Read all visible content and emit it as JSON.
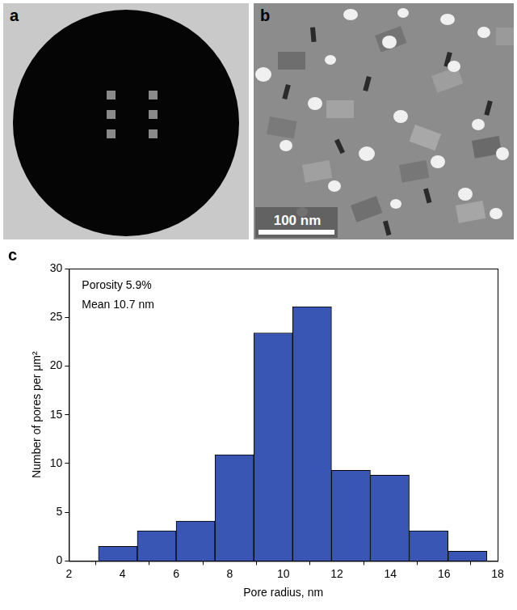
{
  "panel_labels": [
    "a",
    "b",
    "c"
  ],
  "scale_bar_label": "100 nm",
  "chart_data": {
    "type": "histogram",
    "xlabel": "Pore radius, nm",
    "ylabel": "Number of pores per μm²",
    "annotations": [
      "Porosity 5.9%",
      "Mean 10.7 nm"
    ],
    "bins": [
      3.1,
      4.55,
      6.0,
      7.45,
      8.9,
      10.35,
      11.8,
      13.25,
      14.7,
      16.15,
      17.6
    ],
    "counts": [
      1.5,
      3.1,
      4.1,
      10.9,
      23.4,
      26.1,
      9.3,
      8.8,
      3.1,
      1.0
    ],
    "color": "#3a56b4",
    "xlim": [
      2,
      18
    ],
    "xticks": [
      2,
      4,
      6,
      8,
      10,
      12,
      14,
      16,
      18
    ],
    "ylim": [
      0,
      30
    ],
    "yticks": [
      0,
      5,
      10,
      15,
      20,
      25,
      30
    ],
    "grid": false
  }
}
